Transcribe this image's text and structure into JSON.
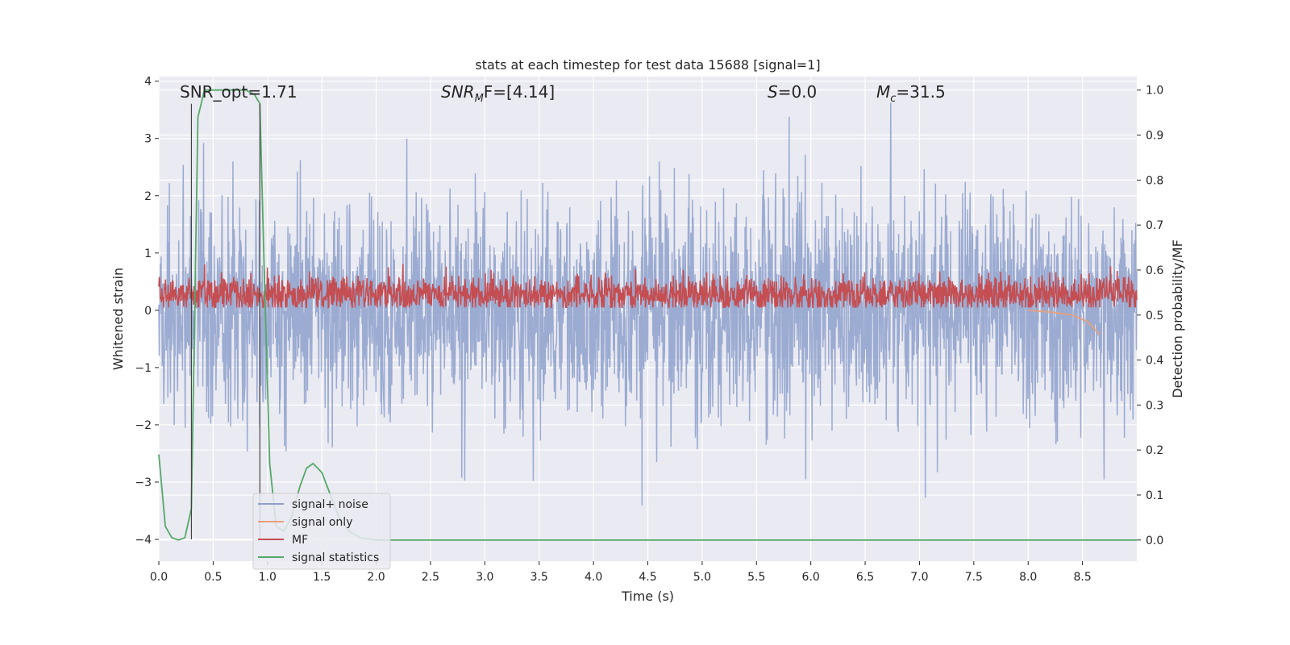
{
  "chart_data": {
    "type": "line",
    "title": "stats at each timestep for test data 15688 [signal=1]",
    "xlabel": "Time (s)",
    "ylabel": "Whitened strain",
    "y2label": "Detection probability/MF",
    "xlim": [
      0.0,
      9.0
    ],
    "ylim": [
      -4.38,
      4.08
    ],
    "y2lim": [
      -0.047,
      1.03
    ],
    "xticks": [
      0.0,
      0.5,
      1.0,
      1.5,
      2.0,
      2.5,
      3.0,
      3.5,
      4.0,
      4.5,
      5.0,
      5.5,
      6.0,
      6.5,
      7.0,
      7.5,
      8.0,
      8.5
    ],
    "xtick_labels": [
      "0.0",
      "0.5",
      "1.0",
      "1.5",
      "2.0",
      "2.5",
      "3.0",
      "3.5",
      "4.0",
      "4.5",
      "5.0",
      "5.5",
      "6.0",
      "6.5",
      "7.0",
      "7.5",
      "8.0",
      "8.5"
    ],
    "yticks": [
      4,
      3,
      2,
      1,
      0,
      -1,
      -2,
      -3,
      -4
    ],
    "ytick_labels": [
      "4",
      "3",
      "2",
      "1",
      "0",
      "−1",
      "−2",
      "−3",
      "−4"
    ],
    "y2ticks": [
      1.0,
      0.9,
      0.8,
      0.7,
      0.6,
      0.5,
      0.4,
      0.3,
      0.2,
      0.1,
      0.0
    ],
    "y2tick_labels": [
      "1.0",
      "0.9",
      "0.8",
      "0.7",
      "0.6",
      "0.5",
      "0.4",
      "0.3",
      "0.2",
      "0.1",
      "0.0"
    ],
    "grid": true,
    "legend_placement": "lower-left",
    "annotations": {
      "snr_opt": "SNR_opt=1.71",
      "snr_mf_sym": "SNR",
      "snr_mf_sub": "M",
      "snr_mf_rest": "F=[4.14]",
      "s_sym": "S",
      "s_rest": "=0.0",
      "mc_sym": "M",
      "mc_sub": "c",
      "mc_rest": "=31.5"
    },
    "vlines_x": [
      0.3,
      0.93
    ],
    "series": [
      {
        "name": "signal+ noise",
        "color": "#8da0cb",
        "kind": "noise",
        "amplitude_range": [
          -3.55,
          3.65
        ]
      },
      {
        "name": "signal only",
        "color": "#e8a07a",
        "kind": "signal",
        "x": [
          8.0,
          8.2,
          8.4,
          8.55,
          8.62,
          8.66
        ],
        "y": [
          0.0,
          -0.03,
          -0.08,
          -0.2,
          -0.35,
          -0.42
        ]
      },
      {
        "name": "MF",
        "color": "#c44e52",
        "kind": "mf",
        "range": [
          0.05,
          0.85
        ]
      },
      {
        "name": "signal statistics",
        "color": "#55a868",
        "x": [
          0.0,
          0.06,
          0.12,
          0.18,
          0.24,
          0.3,
          0.36,
          0.42,
          0.5,
          0.6,
          0.7,
          0.8,
          0.88,
          0.93,
          0.97,
          1.02,
          1.08,
          1.15,
          1.22,
          1.3,
          1.36,
          1.42,
          1.5,
          1.58,
          1.66,
          1.75,
          1.85,
          2.0,
          2.5,
          9.0
        ],
        "y": [
          0.19,
          0.03,
          0.005,
          0.0,
          0.005,
          0.07,
          0.94,
          1.0,
          1.0,
          1.0,
          1.0,
          1.0,
          0.99,
          0.97,
          0.6,
          0.17,
          0.03,
          0.02,
          0.05,
          0.12,
          0.16,
          0.17,
          0.15,
          0.1,
          0.05,
          0.02,
          0.005,
          0.0,
          0.0,
          0.0
        ]
      }
    ]
  }
}
